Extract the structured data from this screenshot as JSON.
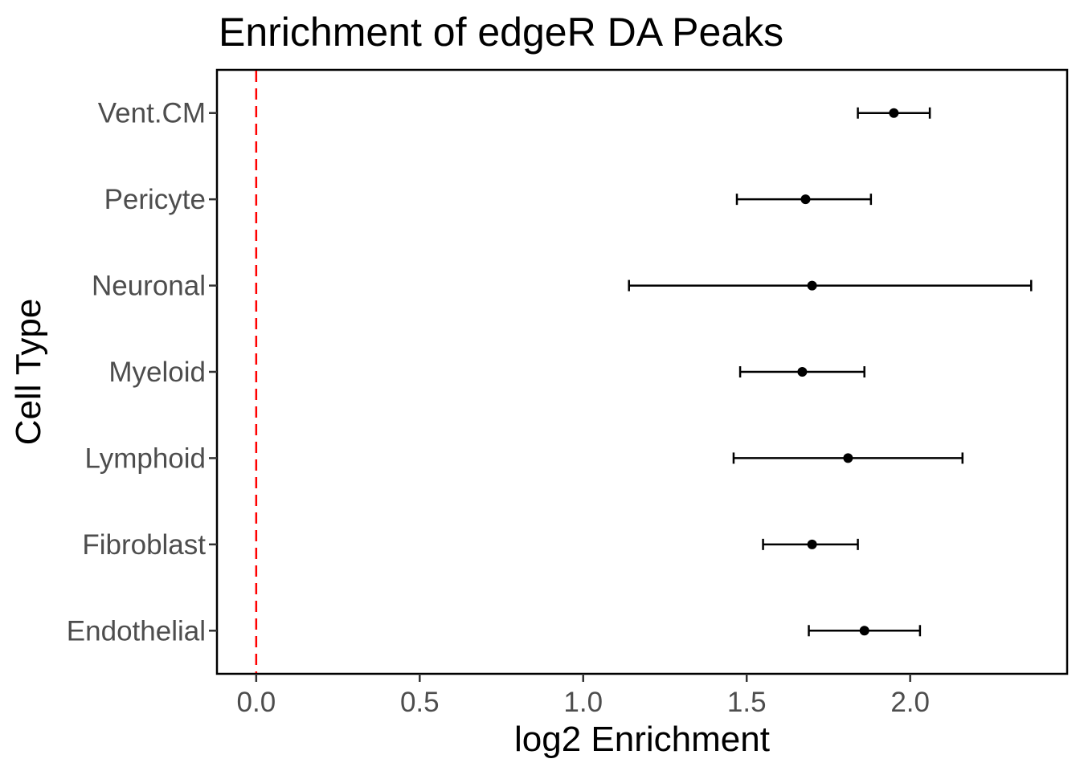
{
  "chart_data": {
    "type": "scatter",
    "title": "Enrichment of edgeR DA Peaks",
    "xlabel": "log2 Enrichment",
    "ylabel": "Cell Type",
    "xlim": [
      -0.12,
      2.48
    ],
    "x_ticks": [
      "0.0",
      "0.5",
      "1.0",
      "1.5",
      "2.0"
    ],
    "x_tick_values": [
      0.0,
      0.5,
      1.0,
      1.5,
      2.0
    ],
    "categories": [
      "Endothelial",
      "Fibroblast",
      "Lymphoid",
      "Myeloid",
      "Neuronal",
      "Pericyte",
      "Vent.CM"
    ],
    "points": [
      {
        "category": "Endothelial",
        "x": 1.86,
        "low": 1.69,
        "high": 2.03
      },
      {
        "category": "Fibroblast",
        "x": 1.7,
        "low": 1.55,
        "high": 1.84
      },
      {
        "category": "Lymphoid",
        "x": 1.81,
        "low": 1.46,
        "high": 2.16
      },
      {
        "category": "Myeloid",
        "x": 1.67,
        "low": 1.48,
        "high": 1.86
      },
      {
        "category": "Neuronal",
        "x": 1.7,
        "low": 1.14,
        "high": 2.37
      },
      {
        "category": "Pericyte",
        "x": 1.68,
        "low": 1.47,
        "high": 1.88
      },
      {
        "category": "Vent.CM",
        "x": 1.95,
        "low": 1.84,
        "high": 2.06
      }
    ],
    "reference_line": {
      "x": 0.0,
      "color": "#ff0000",
      "style": "dashed"
    },
    "point_color": "#000000",
    "grid": false,
    "legend": "none"
  }
}
